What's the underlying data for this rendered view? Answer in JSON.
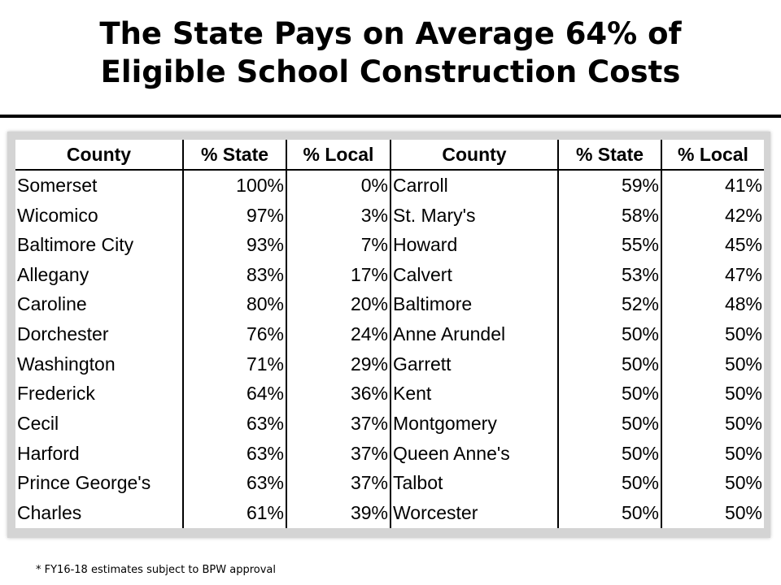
{
  "title": {
    "line1": "The State Pays on Average 64% of",
    "line2": "Eligible School Construction Costs"
  },
  "table": {
    "headers": [
      "County",
      "% State",
      "% Local",
      "County",
      "% State",
      "% Local"
    ],
    "rows": [
      [
        "Somerset",
        "100%",
        "0%",
        "Carroll",
        "59%",
        "41%"
      ],
      [
        "Wicomico",
        "97%",
        "3%",
        "St. Mary's",
        "58%",
        "42%"
      ],
      [
        "Baltimore City",
        "93%",
        "7%",
        "Howard",
        "55%",
        "45%"
      ],
      [
        "Allegany",
        "83%",
        "17%",
        "Calvert",
        "53%",
        "47%"
      ],
      [
        "Caroline",
        "80%",
        "20%",
        "Baltimore",
        "52%",
        "48%"
      ],
      [
        "Dorchester",
        "76%",
        "24%",
        "Anne Arundel",
        "50%",
        "50%"
      ],
      [
        "Washington",
        "71%",
        "29%",
        "Garrett",
        "50%",
        "50%"
      ],
      [
        "Frederick",
        "64%",
        "36%",
        "Kent",
        "50%",
        "50%"
      ],
      [
        "Cecil",
        "63%",
        "37%",
        "Montgomery",
        "50%",
        "50%"
      ],
      [
        "Harford",
        "63%",
        "37%",
        "Queen Anne's",
        "50%",
        "50%"
      ],
      [
        "Prince George's",
        "63%",
        "37%",
        "Talbot",
        "50%",
        "50%"
      ],
      [
        "Charles",
        "61%",
        "39%",
        "Worcester",
        "50%",
        "50%"
      ]
    ]
  },
  "footnote": "* FY16-18 estimates subject to BPW approval"
}
